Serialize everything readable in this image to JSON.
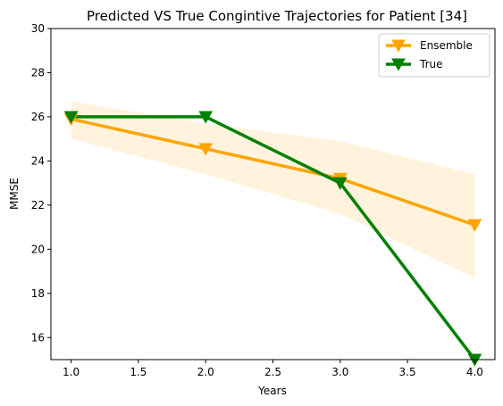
{
  "chart_data": {
    "type": "line",
    "title": "Predicted VS True Congintive Trajectories for Patient [34]",
    "xlabel": "Years",
    "ylabel": "MMSE",
    "xlim": [
      0.85,
      4.15
    ],
    "ylim": [
      15,
      30
    ],
    "xticks": [
      1.0,
      1.5,
      2.0,
      2.5,
      3.0,
      3.5,
      4.0
    ],
    "xtick_labels": [
      "1.0",
      "1.5",
      "2.0",
      "2.5",
      "3.0",
      "3.5",
      "4.0"
    ],
    "yticks": [
      16,
      18,
      20,
      22,
      24,
      26,
      28,
      30
    ],
    "ytick_labels": [
      "16",
      "18",
      "20",
      "22",
      "24",
      "26",
      "28",
      "30"
    ],
    "grid": false,
    "legend_position": "top-right",
    "series": [
      {
        "name": "Ensemble",
        "color": "#ffa500",
        "marker": "triangle-down",
        "x": [
          1,
          2,
          3,
          4
        ],
        "y": [
          25.9,
          24.55,
          23.2,
          21.1
        ],
        "band_lower": [
          25.0,
          23.4,
          21.6,
          18.7
        ],
        "band_upper": [
          26.7,
          25.7,
          24.9,
          23.4
        ],
        "band_color": "#fff3de"
      },
      {
        "name": "True",
        "color": "#008000",
        "marker": "triangle-down",
        "x": [
          1,
          2,
          3,
          4
        ],
        "y": [
          26,
          26,
          23,
          15
        ]
      }
    ]
  }
}
